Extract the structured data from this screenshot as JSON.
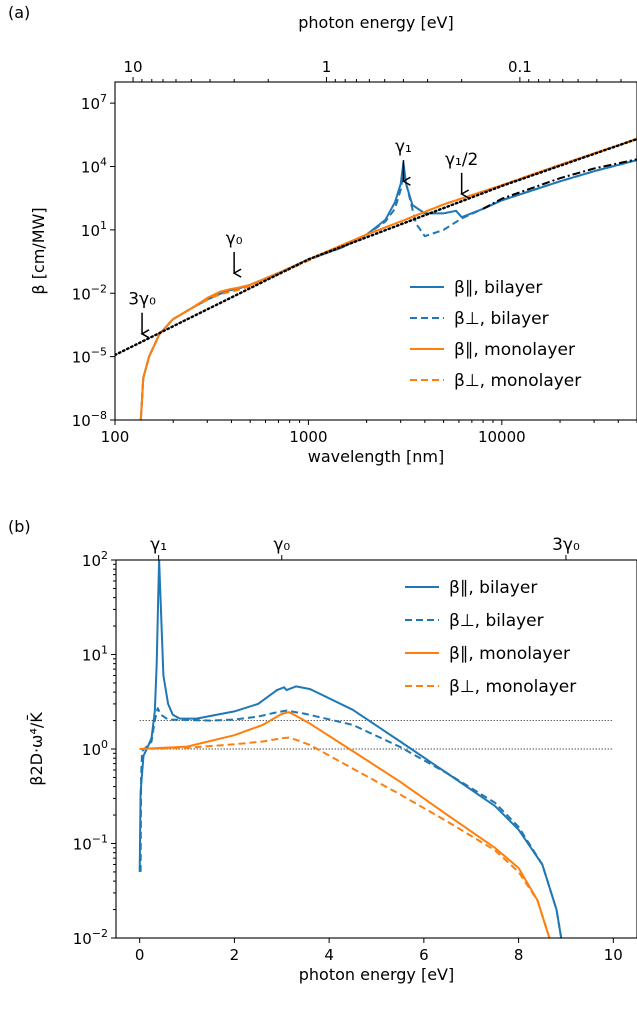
{
  "figure": {
    "panel_a_tag": "(a)",
    "panel_b_tag": "(b)"
  },
  "chart_data": [
    {
      "type": "line",
      "panel": "(a)",
      "xlabel": "wavelength [nm]",
      "ylabel": "β [cm/MW]",
      "top_xlabel": "photon energy [eV]",
      "x_scale": "log",
      "y_scale": "log",
      "xlim": [
        100,
        50000
      ],
      "ylim": [
        1e-08,
        100000000.0
      ],
      "x_ticks": [
        100,
        1000,
        10000
      ],
      "x_tick_labels": [
        "100",
        "1000",
        "10000"
      ],
      "y_ticks": [
        1e-08,
        1e-05,
        0.01,
        10,
        10000,
        10000000
      ],
      "y_tick_labels": [
        {
          "base": "10",
          "exp": "−8"
        },
        {
          "base": "10",
          "exp": "−5"
        },
        {
          "base": "10",
          "exp": "−2"
        },
        {
          "base": "10",
          "exp": "1"
        },
        {
          "base": "10",
          "exp": "4"
        },
        {
          "base": "10",
          "exp": "7"
        }
      ],
      "top_ticks_ev": [
        10,
        1,
        0.1
      ],
      "top_tick_labels": [
        "10",
        "1",
        "0.1"
      ],
      "annotations": [
        {
          "label": "3γ₀",
          "x": 138,
          "y_from": 0.0012,
          "y_to": 0.00012
        },
        {
          "label": "γ₀",
          "x": 413,
          "y_from": 0.9,
          "y_to": 0.09
        },
        {
          "label": "γ₁",
          "x": 3100,
          "y_from": 20000,
          "y_to": 2000
        },
        {
          "label": "γ₁/2",
          "x": 6200,
          "y_from": 5000,
          "y_to": 500
        }
      ],
      "legend_position": "lower right",
      "series": [
        {
          "name": "β∥, bilayer",
          "color": "#1f77b4",
          "dash": "solid",
          "points": [
            [
              136,
              1e-08
            ],
            [
              140,
              1e-06
            ],
            [
              150,
              1e-05
            ],
            [
              170,
              0.00012
            ],
            [
              200,
              0.0006
            ],
            [
              250,
              0.002
            ],
            [
              300,
              0.005
            ],
            [
              380,
              0.013
            ],
            [
              430,
              0.016
            ],
            [
              500,
              0.025
            ],
            [
              700,
              0.09
            ],
            [
              1000,
              0.4
            ],
            [
              1500,
              1.5
            ],
            [
              2000,
              6
            ],
            [
              2500,
              30
            ],
            [
              2800,
              200
            ],
            [
              3000,
              1500
            ],
            [
              3100,
              15000
            ],
            [
              3200,
              1500
            ],
            [
              3450,
              150
            ],
            [
              4000,
              60
            ],
            [
              5000,
              60
            ],
            [
              5800,
              80
            ],
            [
              6200,
              40
            ],
            [
              8000,
              100
            ],
            [
              10000,
              250
            ],
            [
              20000,
              2000
            ],
            [
              30000,
              6000
            ],
            [
              50000,
              20000
            ]
          ]
        },
        {
          "name": "β⊥, bilayer",
          "color": "#1f77b4",
          "dash": "dashed",
          "points": [
            [
              136,
              1e-08
            ],
            [
              140,
              1e-06
            ],
            [
              150,
              1e-05
            ],
            [
              170,
              0.00012
            ],
            [
              200,
              0.0006
            ],
            [
              250,
              0.002
            ],
            [
              300,
              0.005
            ],
            [
              380,
              0.013
            ],
            [
              430,
              0.016
            ],
            [
              500,
              0.025
            ],
            [
              700,
              0.09
            ],
            [
              1000,
              0.4
            ],
            [
              1500,
              1.5
            ],
            [
              2000,
              6
            ],
            [
              2500,
              25
            ],
            [
              2800,
              100
            ],
            [
              3000,
              800
            ],
            [
              3100,
              5000
            ],
            [
              3300,
              500
            ],
            [
              3600,
              20
            ],
            [
              4000,
              5
            ],
            [
              5000,
              10
            ],
            [
              6200,
              35
            ],
            [
              8000,
              100
            ],
            [
              10000,
              250
            ],
            [
              20000,
              2000
            ],
            [
              30000,
              6000
            ],
            [
              50000,
              20000
            ]
          ]
        },
        {
          "name": "β∥, monolayer",
          "color": "#ff7f0e",
          "dash": "solid",
          "points": [
            [
              136,
              1e-08
            ],
            [
              140,
              1e-06
            ],
            [
              150,
              1e-05
            ],
            [
              170,
              0.00012
            ],
            [
              200,
              0.0006
            ],
            [
              250,
              0.002
            ],
            [
              300,
              0.006
            ],
            [
              350,
              0.012
            ],
            [
              400,
              0.016
            ],
            [
              430,
              0.018
            ],
            [
              500,
              0.025
            ],
            [
              700,
              0.09
            ],
            [
              1000,
              0.4
            ],
            [
              2000,
              6
            ],
            [
              3000,
              25
            ],
            [
              5000,
              160
            ],
            [
              10000,
              1300
            ],
            [
              20000,
              12000
            ],
            [
              50000,
              200000
            ]
          ]
        },
        {
          "name": "β⊥, monolayer",
          "color": "#ff7f0e",
          "dash": "dashed",
          "points": [
            [
              136,
              1e-08
            ],
            [
              140,
              1e-06
            ],
            [
              150,
              1e-05
            ],
            [
              170,
              0.00012
            ],
            [
              200,
              0.0006
            ],
            [
              250,
              0.002
            ],
            [
              300,
              0.005
            ],
            [
              350,
              0.009
            ],
            [
              400,
              0.012
            ],
            [
              430,
              0.014
            ],
            [
              500,
              0.022
            ],
            [
              700,
              0.08
            ],
            [
              1000,
              0.35
            ],
            [
              2000,
              6
            ],
            [
              3000,
              25
            ],
            [
              5000,
              160
            ],
            [
              10000,
              1300
            ],
            [
              20000,
              12000
            ],
            [
              50000,
              200000
            ]
          ]
        },
        {
          "name": "",
          "color": "#000000",
          "dash": "dotted",
          "points": [
            [
              100,
              1.2e-05
            ],
            [
              1000,
              0.4
            ],
            [
              10000,
              1200
            ],
            [
              50000,
              200000
            ]
          ]
        },
        {
          "name": "",
          "color": "#000000",
          "dash": "dashdot",
          "points": [
            [
              8000,
              100
            ],
            [
              10000,
              300
            ],
            [
              20000,
              2800
            ],
            [
              30000,
              8000
            ],
            [
              50000,
              22000
            ]
          ]
        }
      ]
    },
    {
      "type": "line",
      "panel": "(b)",
      "xlabel": "photon energy [eV]",
      "ylabel": "β2D·ω⁴/K̄",
      "x_scale": "linear",
      "y_scale": "log",
      "xlim": [
        -0.5,
        10.5
      ],
      "ylim": [
        0.01,
        100
      ],
      "x_ticks": [
        0,
        2,
        4,
        6,
        8,
        10
      ],
      "x_tick_labels": [
        "0",
        "2",
        "4",
        "6",
        "8",
        "10"
      ],
      "y_ticks": [
        0.01,
        0.1,
        1,
        10,
        100
      ],
      "y_tick_labels": [
        {
          "base": "10",
          "exp": "−2"
        },
        {
          "base": "10",
          "exp": "−1"
        },
        {
          "base": "10",
          "exp": "0"
        },
        {
          "base": "10",
          "exp": "1"
        },
        {
          "base": "10",
          "exp": "2"
        }
      ],
      "top_ticks": [
        0.4,
        3.0,
        9.0
      ],
      "top_tick_labels": [
        "γ₁",
        "γ₀",
        "3γ₀"
      ],
      "reference_lines": [
        1,
        2
      ],
      "legend_position": "upper right",
      "series": [
        {
          "name": "β∥, bilayer",
          "color": "#1f77b4",
          "dash": "solid",
          "points": [
            [
              0.0,
              0.05
            ],
            [
              0.02,
              0.35
            ],
            [
              0.08,
              0.85
            ],
            [
              0.15,
              1.0
            ],
            [
              0.25,
              1.3
            ],
            [
              0.32,
              2.5
            ],
            [
              0.36,
              8
            ],
            [
              0.39,
              40
            ],
            [
              0.41,
              100
            ],
            [
              0.44,
              40
            ],
            [
              0.5,
              6
            ],
            [
              0.6,
              3
            ],
            [
              0.7,
              2.3
            ],
            [
              0.85,
              2.1
            ],
            [
              1.2,
              2.1
            ],
            [
              2.0,
              2.5
            ],
            [
              2.5,
              3.0
            ],
            [
              2.9,
              4.2
            ],
            [
              3.05,
              4.5
            ],
            [
              3.1,
              4.2
            ],
            [
              3.3,
              4.6
            ],
            [
              3.6,
              4.3
            ],
            [
              4.5,
              2.6
            ],
            [
              5.5,
              1.2
            ],
            [
              6.5,
              0.55
            ],
            [
              7.5,
              0.25
            ],
            [
              8.0,
              0.14
            ],
            [
              8.5,
              0.06
            ],
            [
              8.8,
              0.02
            ],
            [
              8.9,
              0.01
            ]
          ]
        },
        {
          "name": "β⊥, bilayer",
          "color": "#1f77b4",
          "dash": "dashed",
          "points": [
            [
              0.02,
              0.05
            ],
            [
              0.03,
              0.5
            ],
            [
              0.05,
              0.95
            ],
            [
              0.1,
              1.0
            ],
            [
              0.25,
              1.2
            ],
            [
              0.32,
              2.0
            ],
            [
              0.38,
              2.7
            ],
            [
              0.45,
              2.3
            ],
            [
              0.6,
              2.05
            ],
            [
              1.5,
              2.0
            ],
            [
              2.0,
              2.05
            ],
            [
              2.5,
              2.2
            ],
            [
              2.9,
              2.45
            ],
            [
              3.1,
              2.55
            ],
            [
              3.2,
              2.5
            ],
            [
              3.5,
              2.35
            ],
            [
              4.5,
              1.8
            ],
            [
              5.5,
              1.05
            ],
            [
              6.5,
              0.55
            ],
            [
              7.5,
              0.27
            ],
            [
              8.0,
              0.15
            ],
            [
              8.5,
              0.06
            ],
            [
              8.8,
              0.02
            ],
            [
              8.9,
              0.01
            ]
          ]
        },
        {
          "name": "β∥, monolayer",
          "color": "#ff7f0e",
          "dash": "solid",
          "points": [
            [
              0.0,
              1.0
            ],
            [
              1.0,
              1.06
            ],
            [
              2.0,
              1.4
            ],
            [
              2.6,
              1.8
            ],
            [
              3.0,
              2.35
            ],
            [
              3.15,
              2.45
            ],
            [
              3.3,
              2.25
            ],
            [
              3.6,
              1.85
            ],
            [
              4.5,
              0.95
            ],
            [
              5.5,
              0.45
            ],
            [
              6.5,
              0.2
            ],
            [
              7.5,
              0.09
            ],
            [
              8.0,
              0.055
            ],
            [
              8.4,
              0.025
            ],
            [
              8.65,
              0.01
            ]
          ]
        },
        {
          "name": "β⊥, monolayer",
          "color": "#ff7f0e",
          "dash": "dashed",
          "points": [
            [
              0.0,
              1.0
            ],
            [
              1.0,
              1.03
            ],
            [
              2.0,
              1.12
            ],
            [
              2.6,
              1.2
            ],
            [
              3.0,
              1.3
            ],
            [
              3.15,
              1.32
            ],
            [
              3.3,
              1.25
            ],
            [
              3.6,
              1.1
            ],
            [
              4.5,
              0.62
            ],
            [
              5.5,
              0.33
            ],
            [
              6.5,
              0.17
            ],
            [
              7.5,
              0.085
            ],
            [
              8.0,
              0.05
            ],
            [
              8.4,
              0.025
            ],
            [
              8.65,
              0.01
            ]
          ]
        }
      ]
    }
  ]
}
